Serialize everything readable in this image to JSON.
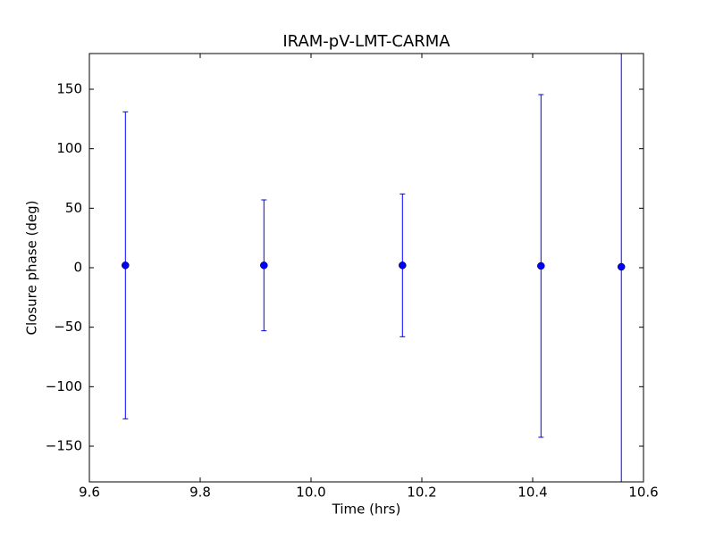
{
  "chart_data": {
    "type": "errorbar",
    "title": "IRAM-pV-LMT-CARMA",
    "xlabel": "Time (hrs)",
    "ylabel": "Closure phase (deg)",
    "x": [
      9.665,
      9.915,
      10.165,
      10.415,
      10.56
    ],
    "values": [
      2,
      2,
      2,
      1.5,
      0.75
    ],
    "errors": [
      129,
      55,
      60,
      144,
      200
    ],
    "color": "#0000ff",
    "xlim": [
      9.6,
      10.6
    ],
    "ylim": [
      -180,
      180
    ],
    "xticks": [
      9.6,
      9.8,
      {
        "value": 10,
        "label": "10.0"
      },
      10.2,
      10.4,
      10.6
    ],
    "yticks": [
      {
        "value": -150,
        "label": "−150"
      },
      {
        "value": -100,
        "label": "−100"
      },
      {
        "value": -50,
        "label": "−50"
      },
      0,
      50,
      100,
      150
    ]
  }
}
